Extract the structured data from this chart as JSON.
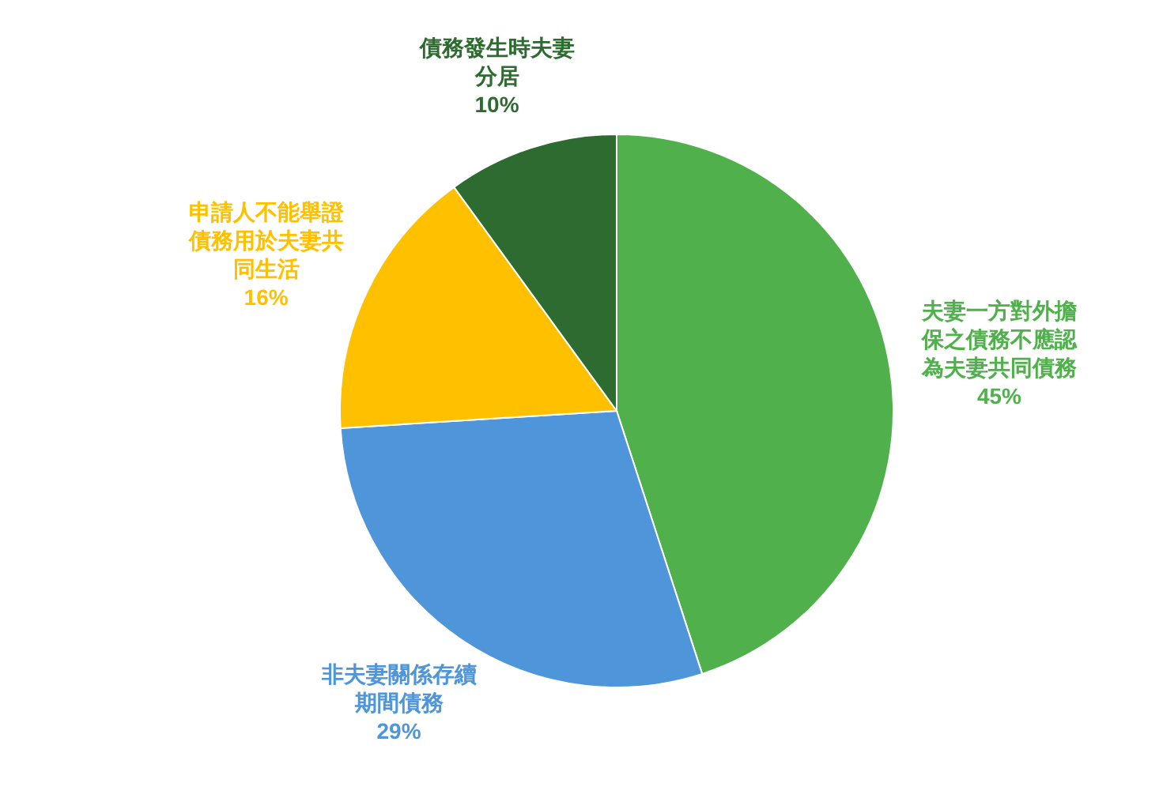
{
  "chart_data": {
    "type": "pie",
    "categories": [
      "夫妻一方對外擔保之債務不應認為夫妻共同債務",
      "非夫妻關係存續期間債務",
      "申請人不能舉證債務用於夫妻共同生活",
      "債務發生時夫妻分居"
    ],
    "values": [
      45,
      29,
      16,
      10
    ],
    "colors": [
      "#50b04b",
      "#4e95d9",
      "#ffc000",
      "#2e6b30"
    ],
    "value_labels": [
      "45%",
      "29%",
      "16%",
      "10%"
    ]
  }
}
